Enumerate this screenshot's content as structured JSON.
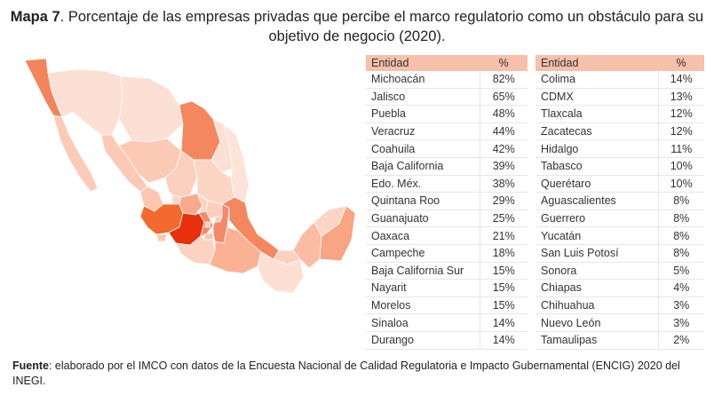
{
  "title": {
    "label": "Mapa 7",
    "text": ". Porcentaje de las empresas privadas que percibe el marco regulatorio como un obstáculo para su objetivo de negocio (2020)."
  },
  "colors": {
    "header": "#f6c0aa",
    "scale_low": "#fbd9cb",
    "scale_high": "#e8300c"
  },
  "table_headers": {
    "entity": "Entidad",
    "percent": "%"
  },
  "chart_data": {
    "type": "table",
    "columns": [
      "Entidad",
      "%"
    ],
    "rows": [
      [
        "Michoacán",
        "82%"
      ],
      [
        "Jalisco",
        "65%"
      ],
      [
        "Puebla",
        "48%"
      ],
      [
        "Veracruz",
        "44%"
      ],
      [
        "Coahuila",
        "42%"
      ],
      [
        "Baja California",
        "39%"
      ],
      [
        "Edo. Méx.",
        "38%"
      ],
      [
        "Quintana Roo",
        "29%"
      ],
      [
        "Guanajuato",
        "25%"
      ],
      [
        "Oaxaca",
        "21%"
      ],
      [
        "Campeche",
        "18%"
      ],
      [
        "Baja California Sur",
        "15%"
      ],
      [
        "Nayarit",
        "15%"
      ],
      [
        "Morelos",
        "15%"
      ],
      [
        "Sinaloa",
        "14%"
      ],
      [
        "Durango",
        "14%"
      ],
      [
        "Colima",
        "14%"
      ],
      [
        "CDMX",
        "13%"
      ],
      [
        "Tlaxcala",
        "12%"
      ],
      [
        "Zacatecas",
        "12%"
      ],
      [
        "Hidalgo",
        "11%"
      ],
      [
        "Tabasco",
        "10%"
      ],
      [
        "Querétaro",
        "10%"
      ],
      [
        "Aguascalientes",
        "8%"
      ],
      [
        "Guerrero",
        "8%"
      ],
      [
        "Yucatán",
        "8%"
      ],
      [
        "San Luis Potosí",
        "8%"
      ],
      [
        "Sonora",
        "5%"
      ],
      [
        "Chiapas",
        "4%"
      ],
      [
        "Chihuahua",
        "3%"
      ],
      [
        "Nuevo León",
        "3%"
      ],
      [
        "Tamaulipas",
        "2%"
      ]
    ]
  },
  "source": {
    "label": "Fuente",
    "text": ": elaborado por el IMCO con datos de la Encuesta Nacional de Calidad Regulatoria e Impacto Gubernamental (ENCIG) 2020 del INEGI."
  }
}
